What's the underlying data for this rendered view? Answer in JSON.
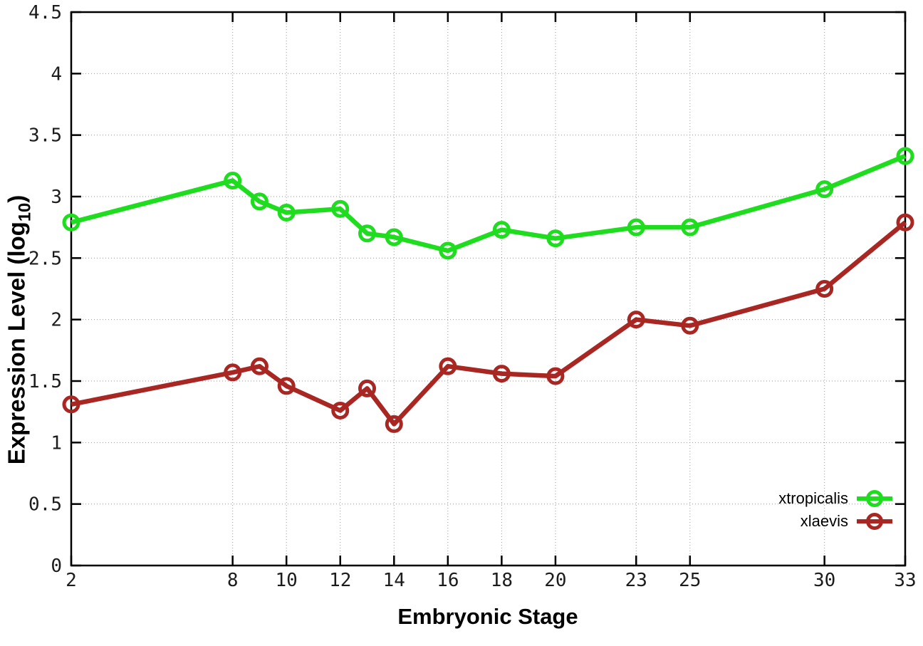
{
  "chart_data": {
    "type": "line",
    "title": "",
    "xlabel": "Embryonic Stage",
    "ylabel": {
      "text": "Expression Level (log",
      "subscript": "10",
      "suffix": ")"
    },
    "xlim": [
      2,
      33
    ],
    "ylim": [
      0,
      4.5
    ],
    "xticks": [
      2,
      8,
      10,
      12,
      14,
      16,
      18,
      20,
      23,
      25,
      30,
      33
    ],
    "yticks": [
      0,
      0.5,
      1,
      1.5,
      2,
      2.5,
      3,
      3.5,
      4,
      4.5
    ],
    "grid": true,
    "legend_position": "bottom-right",
    "x": [
      2,
      8,
      9,
      10,
      12,
      13,
      14,
      16,
      18,
      20,
      23,
      25,
      30,
      33
    ],
    "series": [
      {
        "name": "xtropicalis",
        "color": "#1edc1e",
        "marker": "open-circle",
        "values": [
          2.79,
          3.13,
          2.96,
          2.87,
          2.9,
          2.7,
          2.67,
          2.56,
          2.73,
          2.66,
          2.75,
          2.75,
          3.06,
          3.33
        ]
      },
      {
        "name": "xlaevis",
        "color": "#a92723",
        "marker": "open-circle",
        "values": [
          1.31,
          1.57,
          1.62,
          1.46,
          1.26,
          1.44,
          1.15,
          1.62,
          1.56,
          1.54,
          2.0,
          1.95,
          2.25,
          2.79
        ]
      }
    ],
    "colors": {
      "background": "#ffffff",
      "grid": "#9a9a9a",
      "axis": "#000000",
      "text": "#000000"
    }
  }
}
